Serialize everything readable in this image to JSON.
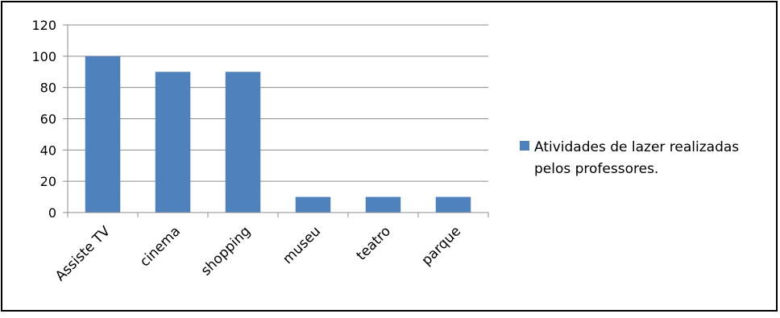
{
  "chart_data": {
    "type": "bar",
    "title": "",
    "xlabel": "",
    "ylabel": "",
    "categories": [
      "Assiste TV",
      "cinema",
      "shopping",
      "museu",
      "teatro",
      "parque"
    ],
    "series": [
      {
        "name": "Atividades de lazer realizadas pelos professores.",
        "values": [
          100,
          90,
          90,
          10,
          10,
          10
        ],
        "color": "#4F81BD"
      }
    ],
    "ylim": [
      0,
      120
    ],
    "yticks": [
      0,
      20,
      40,
      60,
      80,
      100,
      120
    ],
    "grid": true,
    "legend": {
      "position": "right",
      "lines": [
        "Atividades de lazer realizadas",
        "pelos professores."
      ]
    }
  }
}
